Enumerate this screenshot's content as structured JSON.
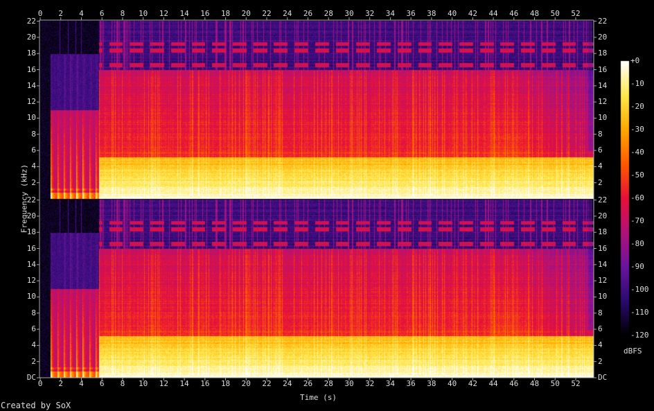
{
  "chart_data": {
    "type": "heatmap",
    "title": "",
    "xlabel": "Time (s)",
    "ylabel": "Frequency (kHz)",
    "channels": 2,
    "xlim": [
      0,
      53.7
    ],
    "ylim_khz": [
      0,
      22.05
    ],
    "x_ticks": [
      "0",
      "2",
      "4",
      "6",
      "8",
      "10",
      "12",
      "14",
      "16",
      "18",
      "20",
      "22",
      "24",
      "26",
      "28",
      "30",
      "32",
      "34",
      "36",
      "38",
      "40",
      "42",
      "44",
      "46",
      "48",
      "50",
      "52"
    ],
    "y_ticks_left": [
      "22",
      "20",
      "18",
      "16",
      "14",
      "12",
      "10",
      "8",
      "6",
      "4",
      "2"
    ],
    "y_ticks_bottom_left": [
      "DC",
      "2",
      "4",
      "6",
      "8",
      "10",
      "12",
      "14",
      "16",
      "18",
      "20",
      "22"
    ],
    "colorbar": {
      "label": "dBFS",
      "range": [
        -120,
        0
      ],
      "ticks": [
        "+0",
        "-10",
        "-20",
        "-30",
        "-40",
        "-50",
        "-60",
        "-70",
        "-80",
        "-90",
        "-100",
        "-110",
        "-120"
      ],
      "colors": [
        "#000000",
        "#2a0a6e",
        "#6a14a0",
        "#b0127a",
        "#e8103a",
        "#ff5a00",
        "#ffa800",
        "#ffe84a",
        "#ffffff"
      ]
    },
    "grid": false,
    "annotations": {
      "credit": "Created by SoX"
    }
  }
}
